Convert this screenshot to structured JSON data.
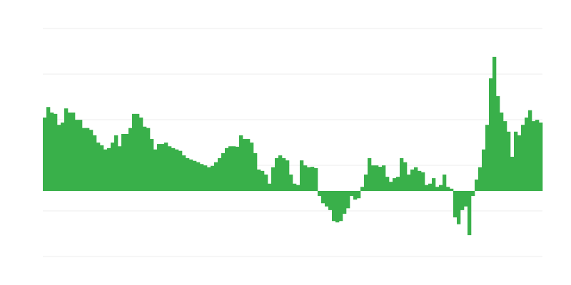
{
  "chart_data": {
    "type": "bar",
    "title": "",
    "xlabel": "",
    "ylabel": "",
    "ylim": [
      -1.4375,
      3.5625
    ],
    "gridlines": [
      -1.4375,
      -0.4375,
      0.5625,
      1.5625,
      2.5625,
      3.5625
    ],
    "grid": true,
    "legend": "none",
    "colors": {
      "bar": "#39b04a",
      "grid": "#eeeeee",
      "background": "#ffffff"
    },
    "values": [
      1.61,
      1.84,
      1.72,
      1.69,
      1.45,
      1.5,
      1.81,
      1.72,
      1.72,
      1.56,
      1.56,
      1.38,
      1.38,
      1.34,
      1.22,
      1.06,
      1.0,
      0.91,
      0.94,
      1.06,
      1.22,
      0.98,
      1.25,
      1.25,
      1.38,
      1.69,
      1.69,
      1.61,
      1.41,
      1.38,
      1.14,
      0.91,
      1.03,
      1.03,
      1.06,
      0.98,
      0.94,
      0.91,
      0.88,
      0.78,
      0.72,
      0.69,
      0.66,
      0.63,
      0.59,
      0.56,
      0.52,
      0.55,
      0.63,
      0.72,
      0.83,
      0.94,
      0.98,
      0.98,
      0.97,
      1.22,
      1.14,
      1.14,
      1.06,
      0.83,
      0.47,
      0.44,
      0.36,
      0.16,
      0.52,
      0.72,
      0.78,
      0.72,
      0.67,
      0.36,
      0.16,
      0.13,
      0.67,
      0.56,
      0.52,
      0.53,
      0.5,
      -0.11,
      -0.27,
      -0.34,
      -0.42,
      -0.66,
      -0.69,
      -0.66,
      -0.5,
      -0.38,
      -0.11,
      -0.19,
      -0.16,
      0.09,
      0.36,
      0.72,
      0.56,
      0.56,
      0.53,
      0.56,
      0.31,
      0.2,
      0.28,
      0.31,
      0.72,
      0.63,
      0.36,
      0.47,
      0.52,
      0.44,
      0.41,
      0.13,
      0.16,
      0.28,
      0.09,
      0.13,
      0.36,
      0.09,
      0.05,
      -0.58,
      -0.73,
      -0.42,
      -0.34,
      -0.97,
      -0.11,
      0.25,
      0.52,
      0.91,
      1.45,
      2.47,
      2.94,
      2.08,
      1.72,
      1.53,
      1.3,
      0.75,
      1.3,
      1.22,
      1.45,
      1.61,
      1.77,
      1.53,
      1.56,
      1.5
    ]
  }
}
